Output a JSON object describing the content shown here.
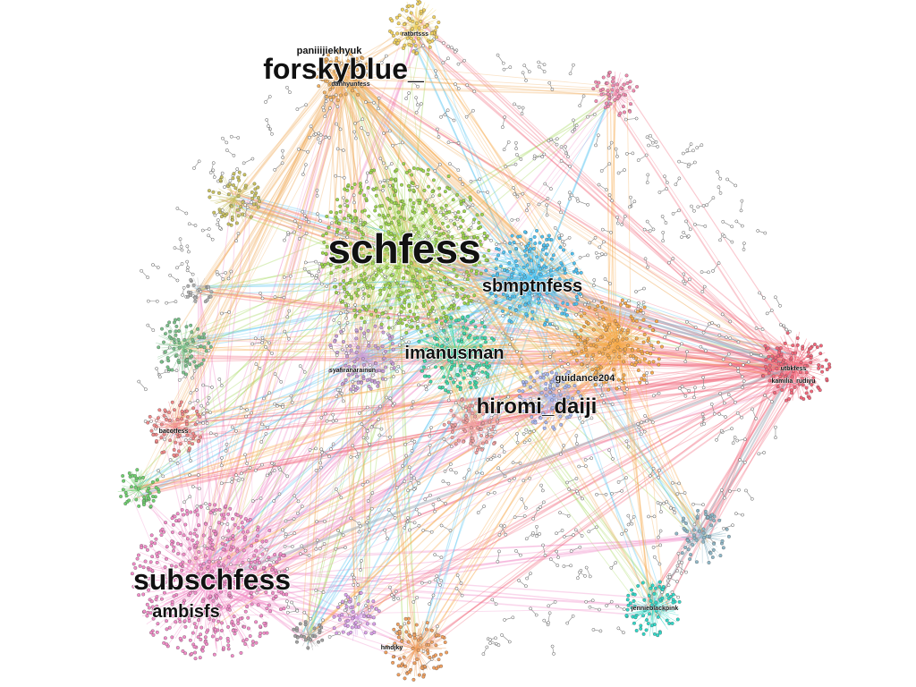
{
  "graph": {
    "labels": {
      "schfess": "schfess",
      "subschfess": "subschfess",
      "forskyblue": "forskyblue_",
      "hiromi_daiji": "hiromi_daiji",
      "sbmptnfess": "sbmptnfess",
      "imanusman": "imanusman",
      "ambisfs": "ambisfs",
      "guidance204": "guidance204",
      "paniiijiekhyuk": "paniiijiekhyuk",
      "syafiranarainun": "syafiranarainun",
      "utbkfess": "utbkfess",
      "kamilia_rudiyu": "kamilia_rudiyu",
      "jennieblackpink": "jennieblackpink",
      "hmdjky": "hmdjky",
      "ratbrtsss": "ratbrtsss",
      "bacotfess": "bacotfess",
      "danhyunfess": "danhyunfess"
    },
    "clusters": [
      {
        "id": "schfess",
        "color": "#9bd34a"
      },
      {
        "id": "subschfess",
        "color": "#f28cc8"
      },
      {
        "id": "sbmptnfess",
        "color": "#4fc3f2"
      },
      {
        "id": "imanusman",
        "color": "#3fd8a8"
      },
      {
        "id": "hiromi_daiji",
        "color": "#f0a0a0"
      },
      {
        "id": "guidance204",
        "color": "#aab8f0"
      },
      {
        "id": "orange",
        "color": "#f5a94a"
      },
      {
        "id": "utbkfess",
        "color": "#f2667a"
      },
      {
        "id": "forskyblue",
        "color": "#f0b060"
      },
      {
        "id": "yellow-top",
        "color": "#f0d060"
      },
      {
        "id": "pink-top",
        "color": "#f28cb0"
      },
      {
        "id": "olive",
        "color": "#c8c060"
      },
      {
        "id": "grey-left",
        "color": "#b0b0b0"
      },
      {
        "id": "green-left",
        "color": "#7ac08a"
      },
      {
        "id": "red-left",
        "color": "#f08888"
      },
      {
        "id": "green-lower-left",
        "color": "#70d070"
      },
      {
        "id": "purple",
        "color": "#c8a0d8"
      },
      {
        "id": "violet-bottom",
        "color": "#d8a0e8"
      },
      {
        "id": "orange-bottom",
        "color": "#f0a060"
      },
      {
        "id": "teal",
        "color": "#30d8c8"
      },
      {
        "id": "steel",
        "color": "#90b8c8"
      },
      {
        "id": "grey-bottom",
        "color": "#a0a0a0"
      }
    ],
    "isolate_color": "#888888"
  }
}
